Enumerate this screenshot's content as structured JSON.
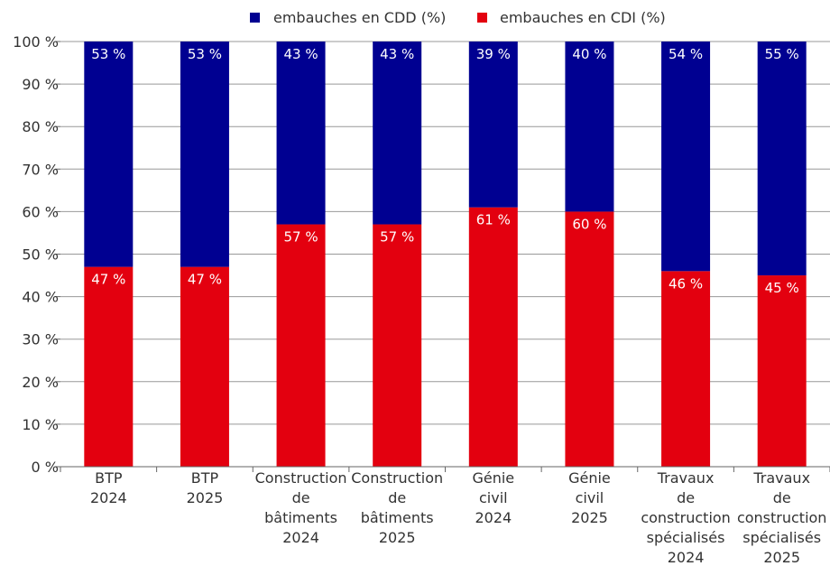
{
  "chart_data": {
    "type": "bar",
    "stacked": true,
    "categories": [
      [
        "BTP",
        "2024"
      ],
      [
        "BTP",
        "2025"
      ],
      [
        "Construction",
        "de",
        "bâtiments",
        "2024"
      ],
      [
        "Construction",
        "de",
        "bâtiments",
        "2025"
      ],
      [
        "Génie",
        "civil",
        "2024"
      ],
      [
        "Génie",
        "civil",
        "2025"
      ],
      [
        "Travaux",
        "de",
        "construction",
        "spécialisés",
        "2024"
      ],
      [
        "Travaux",
        "de",
        "construction",
        "spécialisés",
        "2025"
      ]
    ],
    "series": [
      {
        "name": "embauches en CDI (%)",
        "color": "#e3000f",
        "values": [
          47,
          47,
          57,
          57,
          61,
          60,
          46,
          45
        ],
        "labels": [
          "47 %",
          "47 %",
          "57 %",
          "57 %",
          "61 %",
          "60 %",
          "46 %",
          "45 %"
        ]
      },
      {
        "name": "embauches en CDD (%)",
        "color": "#000091",
        "values": [
          53,
          53,
          43,
          43,
          39,
          40,
          54,
          55
        ],
        "labels": [
          "53 %",
          "53 %",
          "43 %",
          "43 %",
          "39 %",
          "40 %",
          "54 %",
          "55 %"
        ]
      }
    ],
    "legend_order": [
      1,
      0
    ],
    "legend_position": "top",
    "ylim": [
      0,
      100
    ],
    "yticks": [
      0,
      10,
      20,
      30,
      40,
      50,
      60,
      70,
      80,
      90,
      100
    ],
    "ytick_labels": [
      "0 %",
      "10 %",
      "20 %",
      "30 %",
      "40 %",
      "50 %",
      "60 %",
      "70 %",
      "80 %",
      "90 %",
      "100 %"
    ],
    "grid": true,
    "gridColor": "#999999"
  }
}
